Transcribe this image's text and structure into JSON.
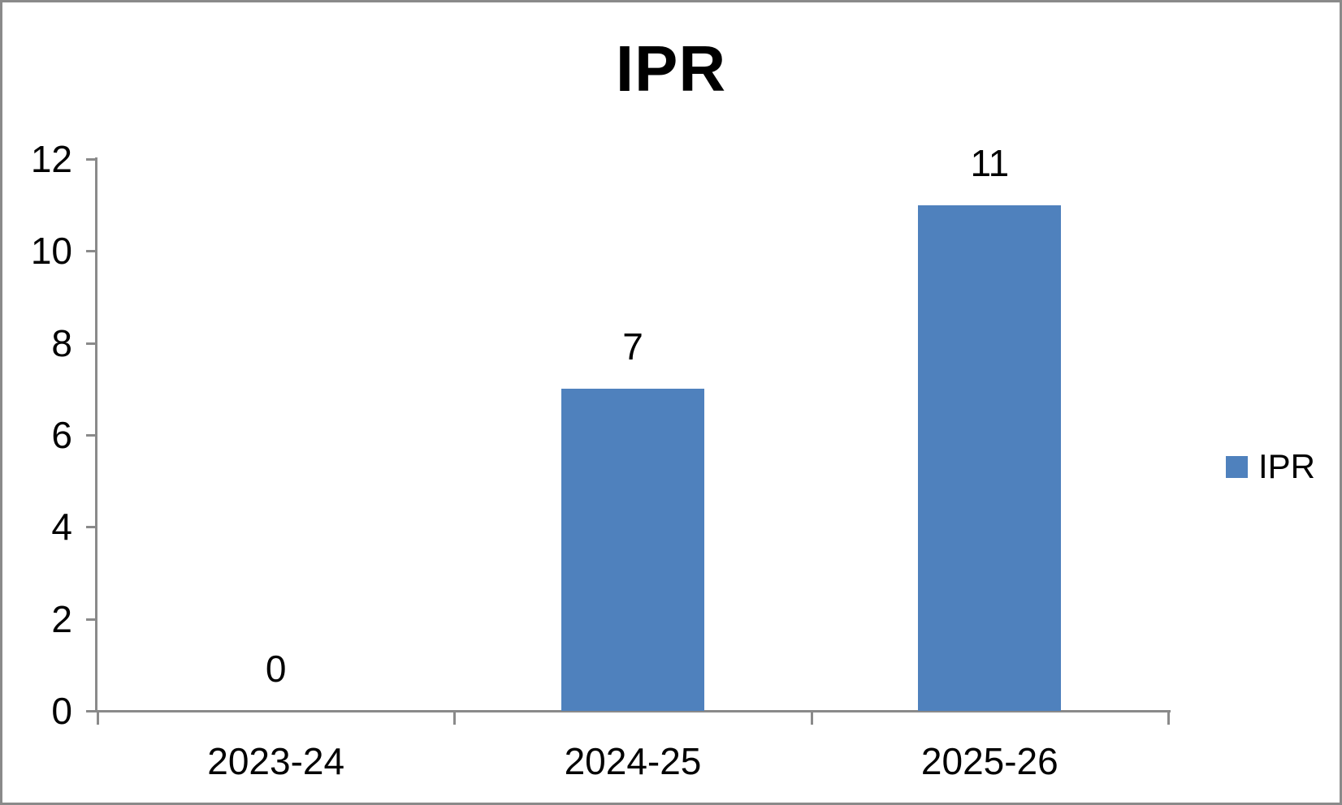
{
  "chart_data": {
    "type": "bar",
    "title": "IPR",
    "categories": [
      "2023-24",
      "2024-25",
      "2025-26"
    ],
    "series": [
      {
        "name": "IPR",
        "values": [
          0,
          7,
          11
        ]
      }
    ],
    "data_labels": [
      "0",
      "7",
      "11"
    ],
    "xlabel": "",
    "ylabel": "",
    "ylim": [
      0,
      12
    ],
    "y_ticks": [
      0,
      2,
      4,
      6,
      8,
      10,
      12
    ],
    "grid": false,
    "legend_position": "right",
    "colors": {
      "bar": "#4F81BD",
      "axis": "#8A8A8A",
      "text": "#000000",
      "frame_border": "#8A8A8A",
      "background": "#FFFFFF"
    }
  }
}
